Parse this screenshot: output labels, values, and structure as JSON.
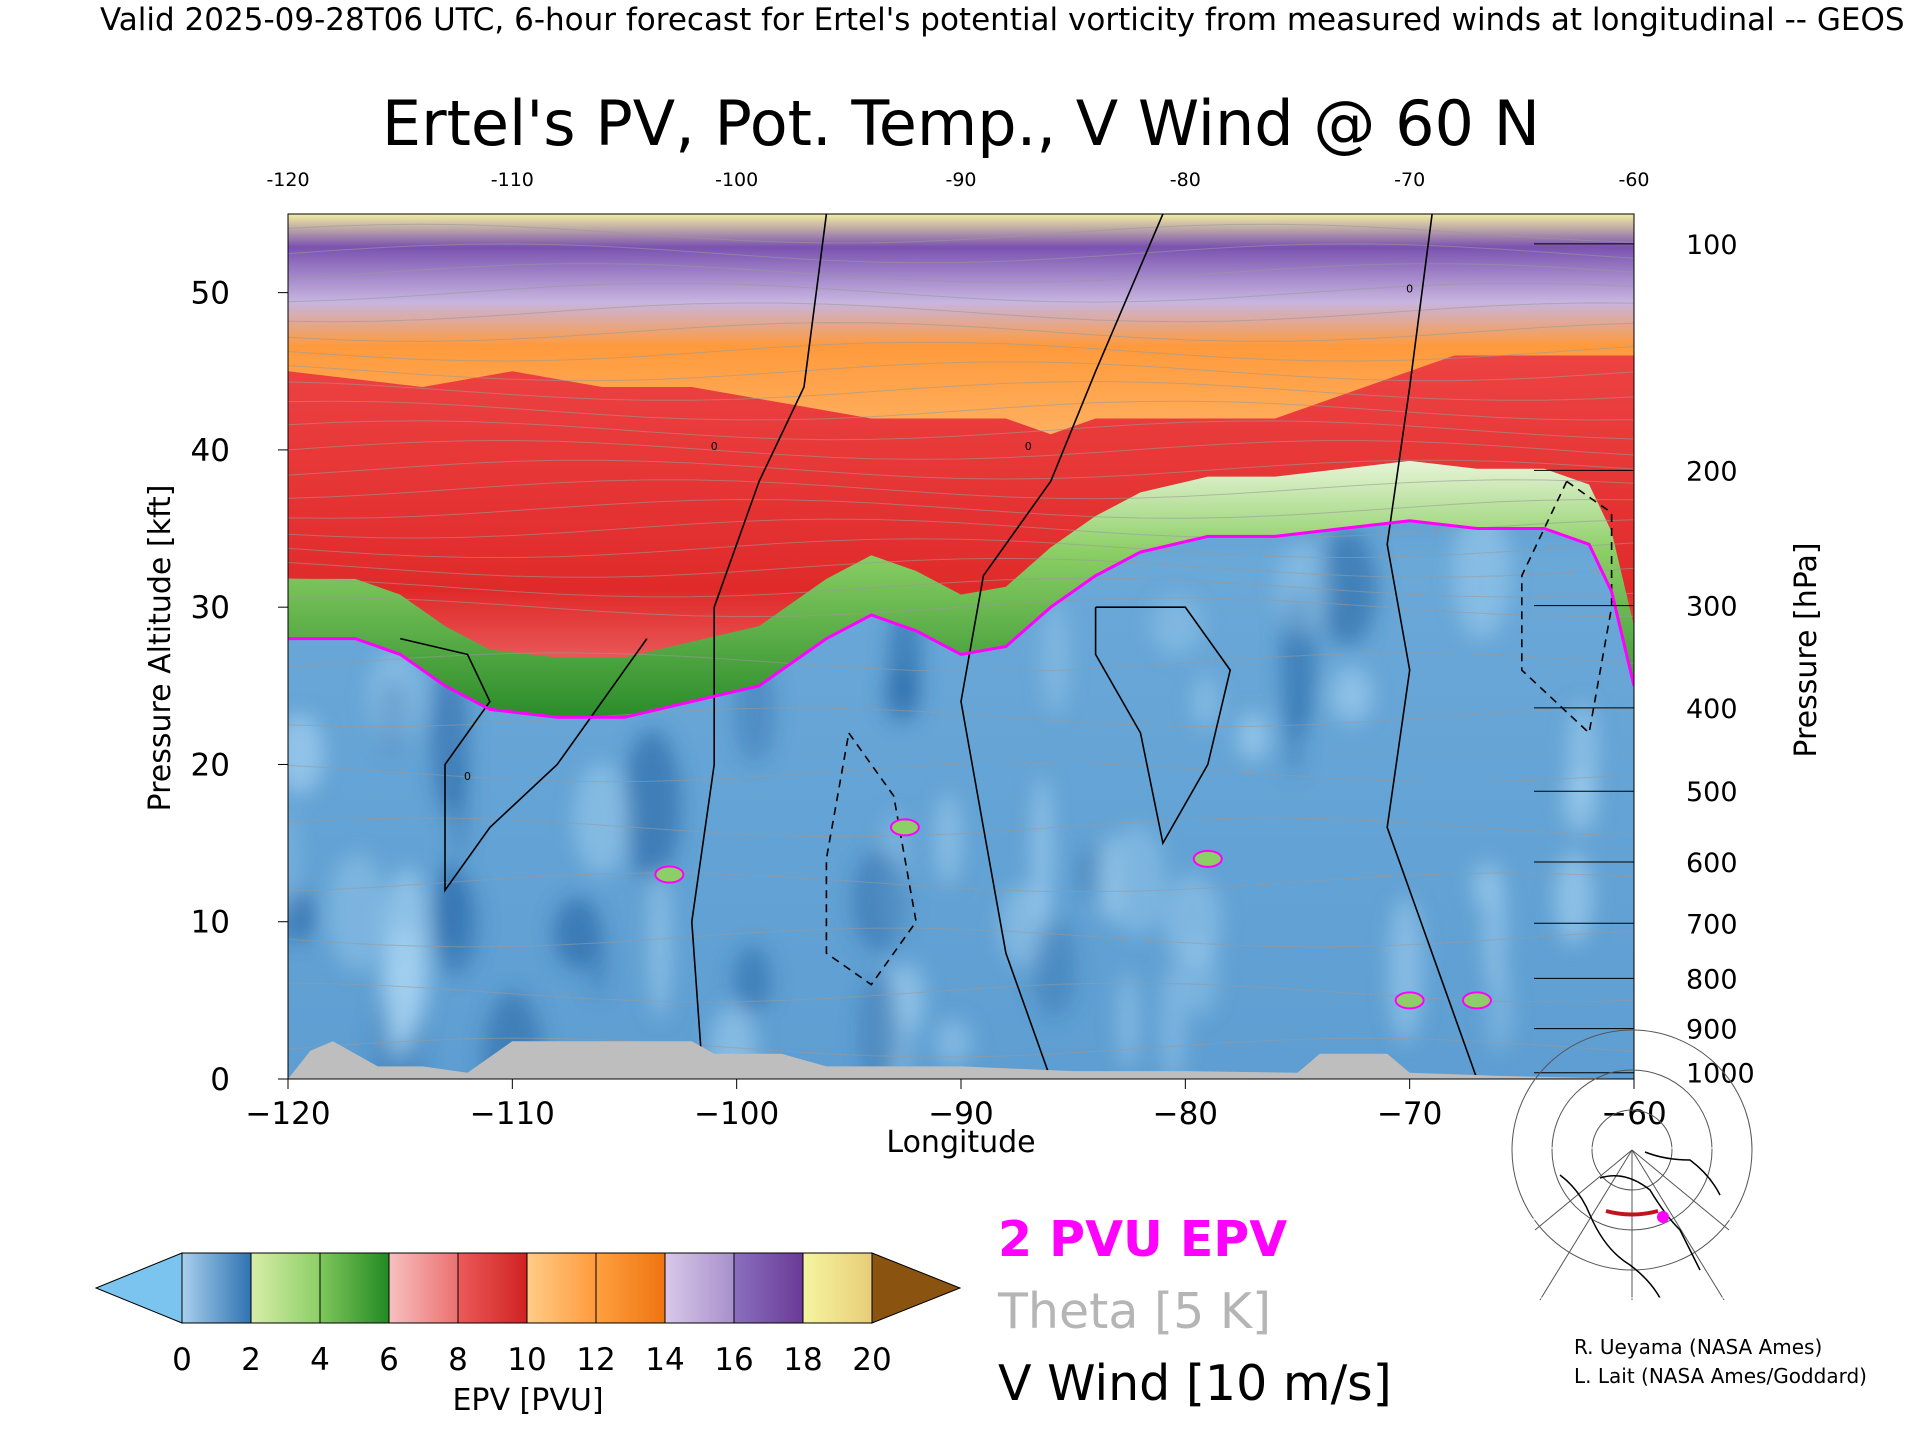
{
  "header_text": "Valid 2025-09-28T06 UTC, 6-hour forecast for Ertel's potential vorticity from measured winds at longitudinal -- GEOS",
  "chart_data": {
    "type": "heatmap",
    "title": "Ertel's PV, Pot. Temp., V Wind @ 60 N",
    "xlabel": "Longitude",
    "ylabel": "Pressure Altitude [kft]",
    "y2label": "Pressure [hPa]",
    "xlim": [
      -120,
      -60
    ],
    "ylim": [
      0,
      55
    ],
    "x_ticks": [
      -120,
      -110,
      -100,
      -90,
      -80,
      -70,
      -60
    ],
    "x_tick_labels": [
      "−120",
      "−110",
      "−100",
      "−90",
      "−80",
      "−70",
      "−60"
    ],
    "top_tick_labels": [
      "-120",
      "-110",
      "-100",
      "-90",
      "-80",
      "-70",
      "-60"
    ],
    "y_ticks": [
      0,
      10,
      20,
      30,
      40,
      50
    ],
    "y_tick_labels": [
      "0",
      "10",
      "20",
      "30",
      "40",
      "50"
    ],
    "pressure_ticks": [
      {
        "label": "100",
        "kft": 53.1
      },
      {
        "label": "200",
        "kft": 38.7
      },
      {
        "label": "300",
        "kft": 30.1
      },
      {
        "label": "400",
        "kft": 23.6
      },
      {
        "label": "500",
        "kft": 18.3
      },
      {
        "label": "600",
        "kft": 13.8
      },
      {
        "label": "700",
        "kft": 9.9
      },
      {
        "label": "800",
        "kft": 6.4
      },
      {
        "label": "900",
        "kft": 3.2
      },
      {
        "label": "1000",
        "kft": 0.4
      }
    ],
    "colorbar": {
      "label": "EPV [PVU]",
      "tick_labels": [
        "0",
        "2",
        "4",
        "6",
        "8",
        "10",
        "12",
        "14",
        "16",
        "18",
        "20"
      ],
      "under_color": "#7cc4f0",
      "over_color": "#8a5410",
      "bands": [
        {
          "from": 0,
          "to": 2,
          "c1": "#a8d0ec",
          "c2": "#2f73b2"
        },
        {
          "from": 2,
          "to": 4,
          "c1": "#d8eda8",
          "c2": "#8ccf66"
        },
        {
          "from": 4,
          "to": 6,
          "c1": "#7fc75c",
          "c2": "#228a22"
        },
        {
          "from": 6,
          "to": 8,
          "c1": "#f7c0c0",
          "c2": "#ec7070"
        },
        {
          "from": 8,
          "to": 10,
          "c1": "#ec5a5a",
          "c2": "#d02222"
        },
        {
          "from": 10,
          "to": 12,
          "c1": "#ffcc88",
          "c2": "#ff9a3c"
        },
        {
          "from": 12,
          "to": 14,
          "c1": "#ffa040",
          "c2": "#ee7410"
        },
        {
          "from": 14,
          "to": 16,
          "c1": "#d8c8e8",
          "c2": "#a890cc"
        },
        {
          "from": 16,
          "to": 18,
          "c1": "#8a70bf",
          "c2": "#6a3a96"
        },
        {
          "from": 18,
          "to": 20,
          "c1": "#f5f5a0",
          "c2": "#e8cc78"
        }
      ]
    },
    "tropopause_kft": [
      [
        -120,
        28
      ],
      [
        -117,
        28
      ],
      [
        -115,
        27
      ],
      [
        -113,
        25
      ],
      [
        -111,
        23.5
      ],
      [
        -108,
        23
      ],
      [
        -105,
        23
      ],
      [
        -102,
        24
      ],
      [
        -99,
        25
      ],
      [
        -96,
        28
      ],
      [
        -94,
        29.5
      ],
      [
        -92,
        28.5
      ],
      [
        -90,
        27
      ],
      [
        -88,
        27.5
      ],
      [
        -86,
        30
      ],
      [
        -84,
        32
      ],
      [
        -82,
        33.5
      ],
      [
        -79,
        34.5
      ],
      [
        -76,
        34.5
      ],
      [
        -73,
        35
      ],
      [
        -70,
        35.5
      ],
      [
        -67,
        35
      ],
      [
        -64,
        35
      ],
      [
        -62,
        34
      ],
      [
        -61,
        31
      ],
      [
        -60,
        25
      ]
    ],
    "stratosphere_top_kft": [
      [
        -120,
        45
      ],
      [
        -114,
        44
      ],
      [
        -110,
        45
      ],
      [
        -106,
        44
      ],
      [
        -102,
        44
      ],
      [
        -98,
        43
      ],
      [
        -94,
        42
      ],
      [
        -90,
        42
      ],
      [
        -88,
        42
      ],
      [
        -86,
        41
      ],
      [
        -84,
        42
      ],
      [
        -80,
        42
      ],
      [
        -76,
        42
      ],
      [
        -72,
        44
      ],
      [
        -68,
        46
      ],
      [
        -64,
        46
      ],
      [
        -60,
        46
      ]
    ],
    "terrain_kft": [
      [
        -120,
        0
      ],
      [
        -119,
        1.8
      ],
      [
        -118,
        2.4
      ],
      [
        -117,
        1.6
      ],
      [
        -116,
        0.8
      ],
      [
        -114,
        0.8
      ],
      [
        -112,
        0.4
      ],
      [
        -110,
        2.4
      ],
      [
        -107,
        2.4
      ],
      [
        -102,
        2.4
      ],
      [
        -101,
        1.6
      ],
      [
        -98,
        1.6
      ],
      [
        -96,
        0.8
      ],
      [
        -90,
        0.8
      ],
      [
        -85,
        0.5
      ],
      [
        -80,
        0.5
      ],
      [
        -75,
        0.4
      ],
      [
        -74,
        1.6
      ],
      [
        -71,
        1.6
      ],
      [
        -70,
        0.4
      ],
      [
        -66,
        0.2
      ],
      [
        -60,
        0
      ]
    ],
    "v_wind_contour_label": "0",
    "legend": [
      {
        "text": "2 PVU EPV",
        "color": "#ff00ff"
      },
      {
        "text": "Theta [5 K]",
        "color": "#b5b5b5"
      },
      {
        "text": "V Wind [10 m/s]",
        "color": "#000000"
      }
    ]
  },
  "credits": [
    "R. Ueyama (NASA Ames)",
    "L. Lait (NASA Ames/Goddard)"
  ],
  "colors": {
    "pv_2_contour": "#ff00ff",
    "theta_contour": "#9a9a9a",
    "v_wind_contour": "#000000",
    "terrain": "#bebebe",
    "map_track": "#c0141c",
    "map_marker": "#ff00ff"
  }
}
